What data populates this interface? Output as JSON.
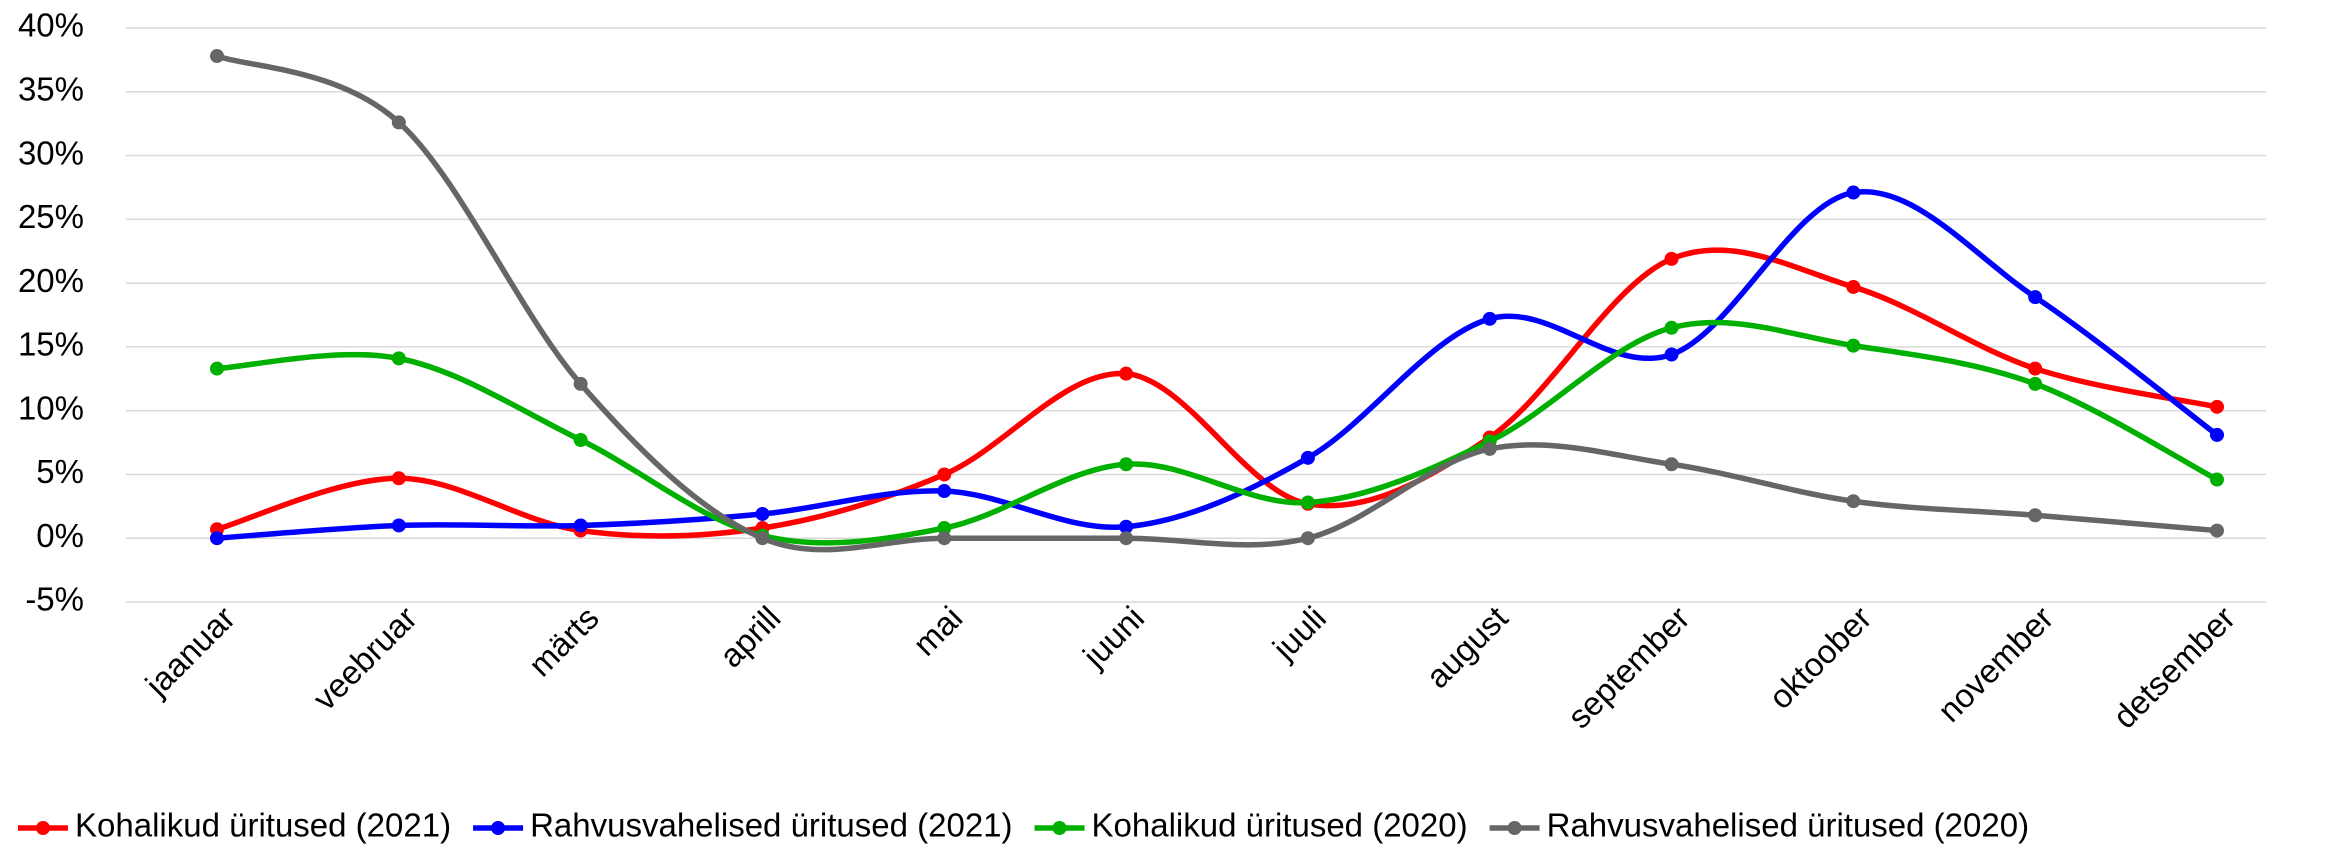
{
  "chart_data": {
    "type": "line",
    "categories": [
      "jaanuar",
      "veebruar",
      "märts",
      "aprill",
      "mai",
      "juuni",
      "juuli",
      "august",
      "september",
      "oktoober",
      "november",
      "detsember"
    ],
    "series": [
      {
        "name": "Kohalikud üritused (2021)",
        "color": "#ff0000",
        "values": [
          0.7,
          4.7,
          0.6,
          0.8,
          5.0,
          12.9,
          2.7,
          7.9,
          21.9,
          19.7,
          13.3,
          10.3
        ]
      },
      {
        "name": "Rahvusvahelised üritused (2021)",
        "color": "#0000ff",
        "values": [
          0.0,
          1.0,
          1.0,
          1.9,
          3.7,
          0.9,
          6.3,
          17.2,
          14.4,
          27.1,
          18.9,
          8.1
        ]
      },
      {
        "name": "Kohalikud üritused (2020)",
        "color": "#00b000",
        "values": [
          13.3,
          14.1,
          7.7,
          0.2,
          0.8,
          5.8,
          2.8,
          7.6,
          16.5,
          15.1,
          12.1,
          4.6
        ]
      },
      {
        "name": "Rahvusvahelised üritused (2020)",
        "color": "#666666",
        "values": [
          37.8,
          32.6,
          12.1,
          0.0,
          0.0,
          0.0,
          0.0,
          7.0,
          5.8,
          2.9,
          1.8,
          0.6
        ]
      }
    ],
    "ylim": [
      -5,
      40
    ],
    "yticks": [
      {
        "value": -5,
        "label": "-5%"
      },
      {
        "value": 0,
        "label": "0%"
      },
      {
        "value": 5,
        "label": "5%"
      },
      {
        "value": 10,
        "label": "10%"
      },
      {
        "value": 15,
        "label": "15%"
      },
      {
        "value": 20,
        "label": "20%"
      },
      {
        "value": 25,
        "label": "25%"
      },
      {
        "value": 30,
        "label": "30%"
      },
      {
        "value": 35,
        "label": "35%"
      },
      {
        "value": 40,
        "label": "40%"
      }
    ],
    "grid": true,
    "smooth": true,
    "legend": "bottom"
  }
}
